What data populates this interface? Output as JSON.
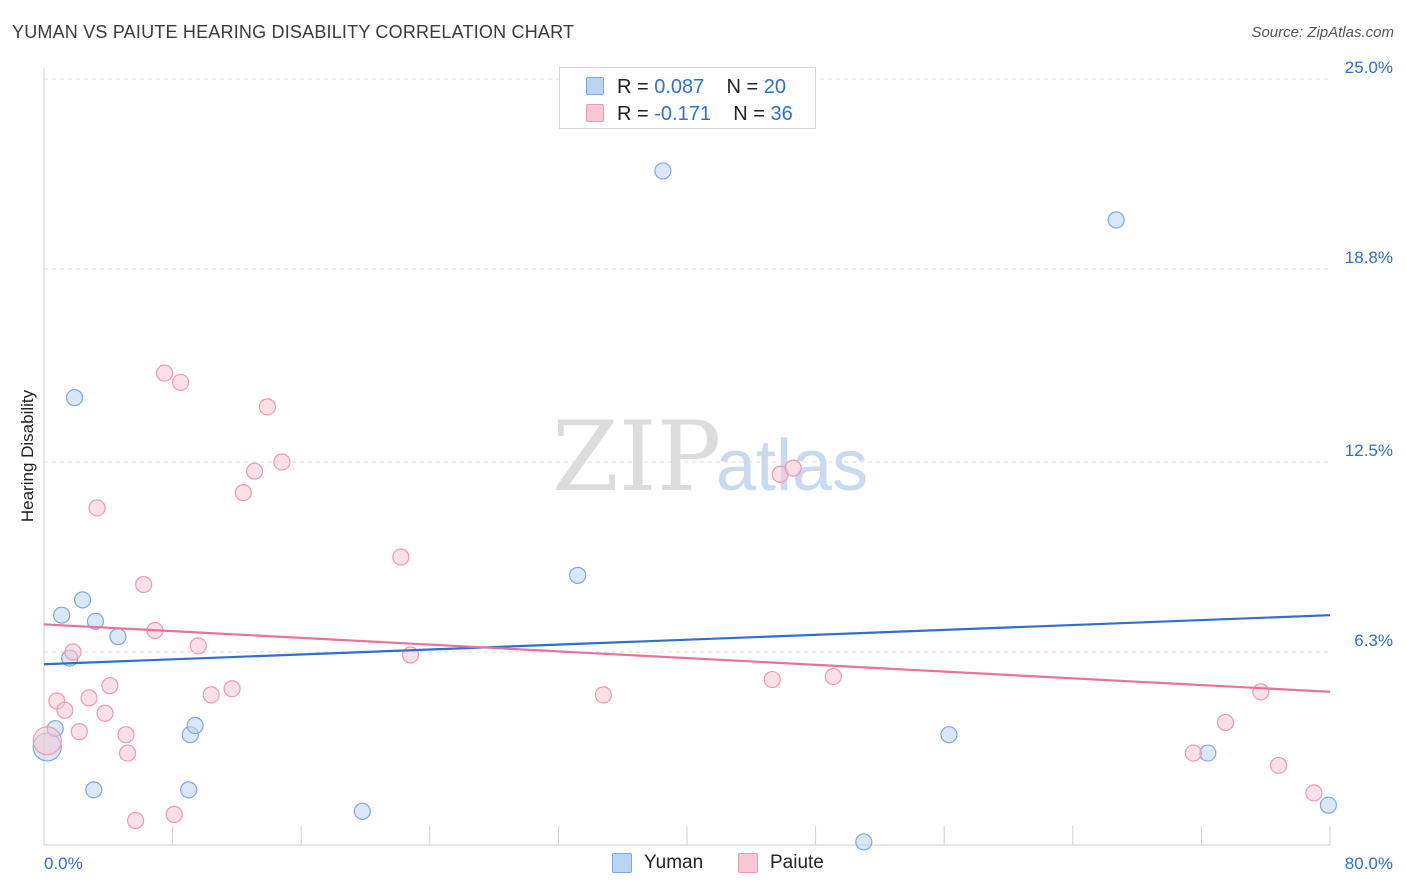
{
  "title": "YUMAN VS PAIUTE HEARING DISABILITY CORRELATION CHART",
  "source": "Source: ZipAtlas.com",
  "watermark": {
    "zip": "ZIP",
    "atlas": "atlas"
  },
  "legend": {
    "yuman": {
      "r_label": "R = ",
      "r_value": "0.087",
      "n_label": "N = ",
      "n_value": "20"
    },
    "paiute": {
      "r_label": "R = ",
      "r_value": "-0.171",
      "n_label": "N = ",
      "n_value": "36"
    }
  },
  "bottom_legend": {
    "yuman": "Yuman",
    "paiute": "Paiute"
  },
  "colors": {
    "yuman_fill": "#b9d3f3",
    "yuman_stroke": "#7ea9e0",
    "yuman_line": "#2f6fd0",
    "paiute_fill": "#f8c6d4",
    "paiute_stroke": "#ec9ab2",
    "paiute_line": "#e8729a",
    "tick_text": "#2f6fd0",
    "grid": "#dddddd"
  },
  "chart_data": {
    "type": "scatter",
    "title": "YUMAN VS PAIUTE HEARING DISABILITY CORRELATION CHART",
    "xlabel": "",
    "ylabel": "Hearing Disability",
    "xlim": [
      0,
      80
    ],
    "ylim": [
      0,
      25
    ],
    "x_tick_labels": [
      {
        "value": 0,
        "label": "0.0%"
      },
      {
        "value": 80,
        "label": "80.0%"
      }
    ],
    "y_ticks": [
      {
        "value": 25.0,
        "label": "25.0%"
      },
      {
        "value": 18.8,
        "label": "18.8%"
      },
      {
        "value": 12.5,
        "label": "12.5%"
      },
      {
        "value": 6.3,
        "label": "6.3%"
      }
    ],
    "grid": "horizontal dashed",
    "legend_position": "top-center",
    "series": [
      {
        "name": "Yuman",
        "points": [
          [
            0.2,
            3.2,
            10
          ],
          [
            1.9,
            14.6,
            6
          ],
          [
            0.7,
            3.8,
            6
          ],
          [
            1.1,
            7.5,
            6
          ],
          [
            1.6,
            6.1,
            6
          ],
          [
            2.4,
            8.0,
            6
          ],
          [
            3.2,
            7.3,
            6
          ],
          [
            4.6,
            6.8,
            6
          ],
          [
            3.1,
            1.8,
            6
          ],
          [
            9.1,
            3.6,
            6
          ],
          [
            9.4,
            3.9,
            6
          ],
          [
            9.0,
            1.8,
            6
          ],
          [
            19.8,
            1.1,
            6
          ],
          [
            33.2,
            8.8,
            6
          ],
          [
            38.5,
            22.0,
            6
          ],
          [
            56.3,
            3.6,
            6
          ],
          [
            66.7,
            20.4,
            6
          ],
          [
            72.4,
            3.0,
            6
          ],
          [
            79.9,
            1.3,
            6
          ],
          [
            51.0,
            0.1,
            6
          ]
        ],
        "trend": {
          "x": [
            0,
            80
          ],
          "y": [
            5.9,
            7.5
          ]
        }
      },
      {
        "name": "Paiute",
        "points": [
          [
            0.2,
            3.4,
            10
          ],
          [
            0.8,
            4.7,
            6
          ],
          [
            1.3,
            4.4,
            6
          ],
          [
            1.8,
            6.3,
            6
          ],
          [
            2.2,
            3.7,
            6
          ],
          [
            2.8,
            4.8,
            6
          ],
          [
            3.3,
            11.0,
            6
          ],
          [
            3.8,
            4.3,
            6
          ],
          [
            4.1,
            5.2,
            6
          ],
          [
            5.1,
            3.6,
            6
          ],
          [
            5.2,
            3.0,
            6
          ],
          [
            5.7,
            0.8,
            6
          ],
          [
            6.2,
            8.5,
            6
          ],
          [
            6.9,
            7.0,
            6
          ],
          [
            7.5,
            15.4,
            6
          ],
          [
            8.1,
            1.0,
            6
          ],
          [
            8.5,
            15.1,
            6
          ],
          [
            9.6,
            6.5,
            6
          ],
          [
            10.4,
            4.9,
            6
          ],
          [
            11.7,
            5.1,
            6
          ],
          [
            12.4,
            11.5,
            6
          ],
          [
            13.1,
            12.2,
            6
          ],
          [
            13.9,
            14.3,
            6
          ],
          [
            14.8,
            12.5,
            6
          ],
          [
            22.2,
            9.4,
            6
          ],
          [
            22.8,
            6.2,
            6
          ],
          [
            34.8,
            4.9,
            6
          ],
          [
            45.3,
            5.4,
            6
          ],
          [
            45.8,
            12.1,
            6
          ],
          [
            46.6,
            12.3,
            6
          ],
          [
            49.1,
            5.5,
            6
          ],
          [
            71.5,
            3.0,
            6
          ],
          [
            73.5,
            4.0,
            6
          ],
          [
            75.7,
            5.0,
            6
          ],
          [
            76.8,
            2.6,
            6
          ],
          [
            79.0,
            1.7,
            6
          ]
        ],
        "trend": {
          "x": [
            0,
            80
          ],
          "y": [
            7.2,
            5.0
          ]
        }
      }
    ]
  }
}
